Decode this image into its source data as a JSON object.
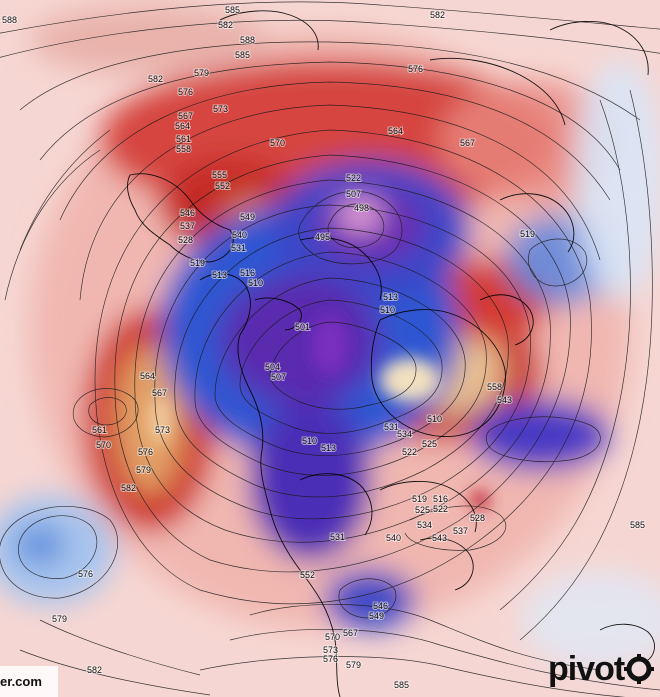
{
  "map": {
    "credit_text": "er.com",
    "brand_text": "pivot",
    "colors": {
      "deep_purple": "#5a1a8c",
      "purple": "#7b3fb5",
      "blue": "#2e5bd6",
      "light_blue": "#8fb4ea",
      "pale_blue": "#d4e3f6",
      "pale_red": "#f6d6d2",
      "red": "#d0302b",
      "dark_red": "#a81d1d",
      "orange": "#e08a3c",
      "tan": "#e9c79a",
      "pink": "#f3b8e6"
    },
    "contour_labels": [
      "588",
      "585",
      "582",
      "579",
      "576",
      "573",
      "570",
      "567",
      "564",
      "561",
      "558",
      "555",
      "552",
      "549",
      "546",
      "543",
      "540",
      "537",
      "534",
      "531",
      "528",
      "525",
      "522",
      "519",
      "516",
      "513",
      "510",
      "507",
      "504",
      "501",
      "498",
      "495"
    ],
    "labels_shown": [
      "588",
      "585",
      "582",
      "588",
      "585",
      "582",
      "576",
      "579",
      "582",
      "576",
      "573",
      "567",
      "564",
      "561",
      "558",
      "570",
      "564",
      "567",
      "555",
      "552",
      "549",
      "546",
      "537",
      "540",
      "528",
      "531",
      "519",
      "513",
      "516",
      "510",
      "522",
      "507",
      "498",
      "495",
      "519",
      "513",
      "510",
      "501",
      "504",
      "507",
      "564",
      "567",
      "573",
      "576",
      "579",
      "582",
      "561",
      "570",
      "558",
      "543",
      "510",
      "531",
      "534",
      "525",
      "522",
      "510",
      "513",
      "519",
      "516",
      "522",
      "525",
      "534",
      "537",
      "540",
      "543",
      "528",
      "531",
      "552",
      "546",
      "549",
      "570",
      "573",
      "576",
      "567",
      "579",
      "585",
      "576",
      "579",
      "582",
      "585"
    ]
  }
}
